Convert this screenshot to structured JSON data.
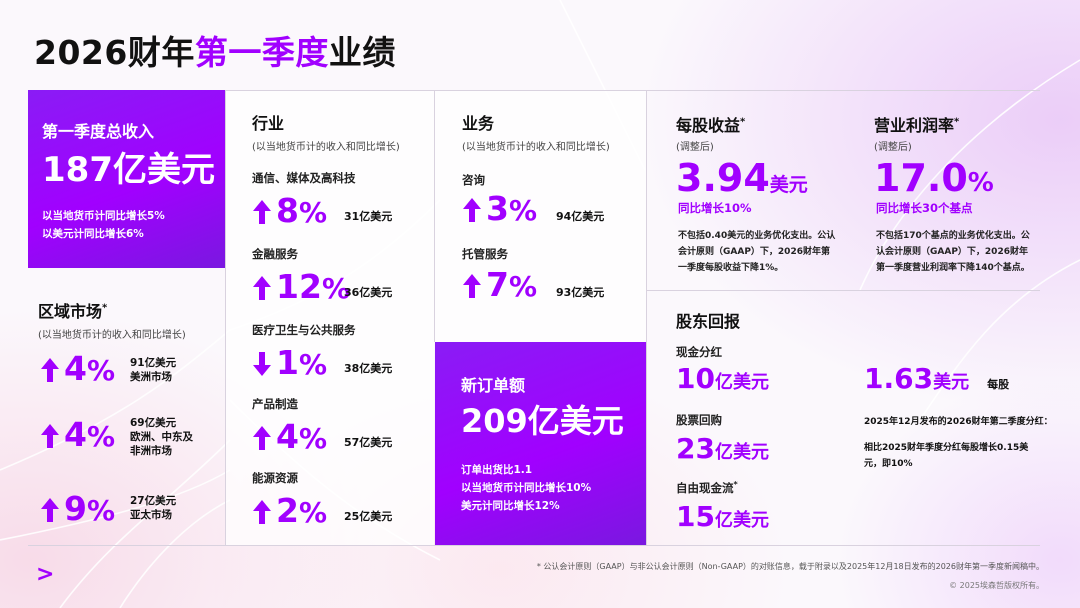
{
  "title": {
    "prefix": "2026财年",
    "highlight": "第一季度",
    "suffix": "业绩"
  },
  "colors": {
    "accent": "#a100ff",
    "text": "#111111",
    "panel": "#8a1cf5"
  },
  "revenue": {
    "label": "第一季度总收入",
    "value": "187亿美元",
    "line1": "以当地货币计同比增长5%",
    "line2": "以美元计同比增长6%"
  },
  "regions": {
    "title": "区域市场",
    "title_mark": "*",
    "subtitle": "(以当地货币计的收入和同比增长)",
    "items": [
      {
        "direction": "up",
        "pct": "4",
        "amount": "91亿美元",
        "name": "美洲市场"
      },
      {
        "direction": "up",
        "pct": "4",
        "amount": "69亿美元",
        "name": "欧洲、中东及非洲市场"
      },
      {
        "direction": "up",
        "pct": "9",
        "amount": "27亿美元",
        "name": "亚太市场"
      }
    ]
  },
  "industries": {
    "title": "行业",
    "subtitle": "(以当地货币计的收入和同比增长)",
    "items": [
      {
        "name": "通信、媒体及高科技",
        "direction": "up",
        "pct": "8",
        "amount": "31亿美元"
      },
      {
        "name": "金融服务",
        "direction": "up",
        "pct": "12",
        "amount": "36亿美元"
      },
      {
        "name": "医疗卫生与公共服务",
        "direction": "down",
        "pct": "1",
        "amount": "38亿美元"
      },
      {
        "name": "产品制造",
        "direction": "up",
        "pct": "4",
        "amount": "57亿美元"
      },
      {
        "name": "能源资源",
        "direction": "up",
        "pct": "2",
        "amount": "25亿美元"
      }
    ]
  },
  "business": {
    "title": "业务",
    "subtitle": "(以当地货币计的收入和同比增长)",
    "items": [
      {
        "name": "咨询",
        "direction": "up",
        "pct": "3",
        "amount": "94亿美元"
      },
      {
        "name": "托管服务",
        "direction": "up",
        "pct": "7",
        "amount": "93亿美元"
      }
    ]
  },
  "bookings": {
    "label": "新订单额",
    "value": "209亿美元",
    "line1": "订单出货比1.1",
    "line2": "以当地货币计同比增长10%",
    "line3": "美元计同比增长12%"
  },
  "eps": {
    "title": "每股收益",
    "title_mark": "*",
    "subtitle": "(调整后)",
    "value_num": "3.94",
    "value_unit": "美元",
    "growth": "同比增长10%",
    "note": "不包括0.40美元的业务优化支出。公认会计原则（GAAP）下，2026财年第一季度每股收益下降1%。"
  },
  "margin": {
    "title": "营业利润率",
    "title_mark": "*",
    "subtitle": "(调整后)",
    "value_num": "17.0",
    "value_unit": "%",
    "growth": "同比增长30个基点",
    "note": "不包括170个基点的业务优化支出。公认会计原则（GAAP）下，2026财年第一季度营业利润率下降140个基点。"
  },
  "shareholder": {
    "title": "股东回报",
    "dividend_label": "现金分红",
    "dividend_num": "10",
    "dividend_unit": "亿美元",
    "buyback_label": "股票回购",
    "buyback_num": "23",
    "buyback_unit": "亿美元",
    "fcf_label": "自由现金流",
    "fcf_mark": "*",
    "fcf_num": "15",
    "fcf_unit": "亿美元",
    "per_share_num": "1.63",
    "per_share_unit": "美元",
    "per_share_suffix": "每股",
    "per_share_desc": "2025年12月发布的2026财年第二季度分红：",
    "per_share_compare": "相比2025财年季度分红每股增长0.15美元，即10%"
  },
  "footer": {
    "footnote": "* 公认会计原则（GAAP）与非公认会计原则（Non-GAAP）的对账信息，载于附录以及2025年12月18日发布的2026财年第一季度新闻稿中。",
    "copyright": "© 2025埃森哲版权所有。",
    "logo": ">"
  }
}
